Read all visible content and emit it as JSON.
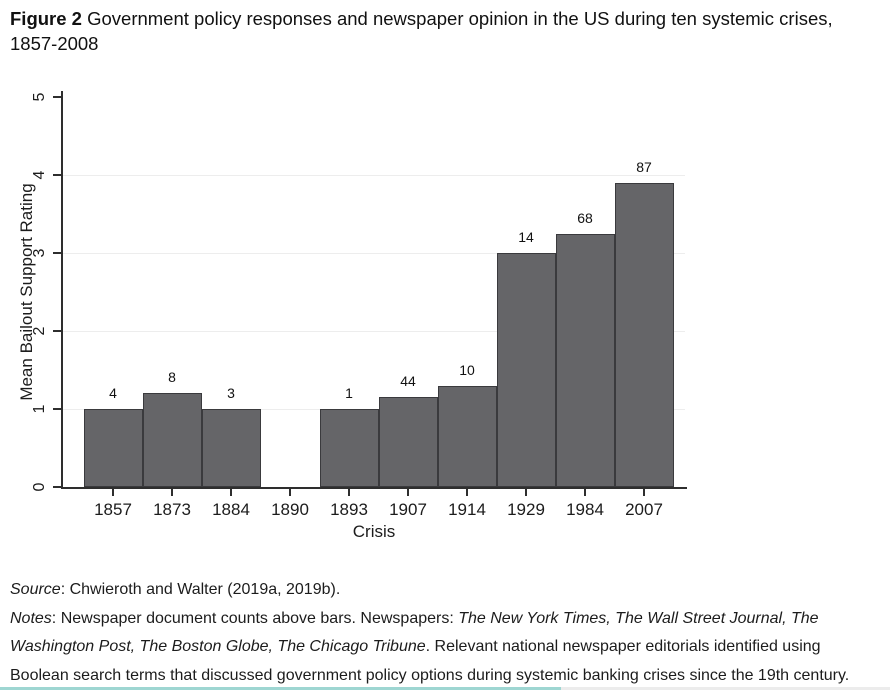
{
  "page": {
    "title_label": "Figure 2",
    "title_text": "Government policy responses and newspaper opinion in the US during ten systemic crises, 1857-2008"
  },
  "chart_data": {
    "type": "bar",
    "title": "",
    "xlabel": "Crisis",
    "ylabel": "Mean Bailout Support Rating",
    "ylim": [
      0,
      5
    ],
    "yticks": [
      0,
      1,
      2,
      3,
      4,
      5
    ],
    "gridline_values": [
      1,
      2,
      3,
      4
    ],
    "legend": "none",
    "categories": [
      "1857",
      "1873",
      "1884",
      "1890",
      "1893",
      "1907",
      "1914",
      "1929",
      "1984",
      "2007"
    ],
    "values": [
      1.0,
      1.2,
      1.0,
      null,
      1.0,
      1.15,
      1.3,
      3.0,
      3.25,
      3.9
    ],
    "bar_count_labels": [
      "4",
      "8",
      "3",
      null,
      "1",
      "44",
      "10",
      "14",
      "68",
      "87"
    ],
    "colors": {
      "bar_fill": "#656568",
      "bar_border": "#3a3a3d",
      "axis": "#2e2e2e",
      "grid": "#ededed",
      "text": "#1c1c1c"
    }
  },
  "footer": {
    "source_segments": [
      {
        "text": "Source",
        "italic": true
      },
      {
        "text": ": Chwieroth and Walter (2019a, 2019b).",
        "italic": false
      }
    ],
    "notes_segments": [
      {
        "text": "Notes",
        "italic": true
      },
      {
        "text": ": Newspaper document counts above bars. Newspapers: ",
        "italic": false
      },
      {
        "text": "The New York Times, The Wall Street Journal, The Washington Post, The Boston Globe, The Chicago Tribune",
        "italic": true
      },
      {
        "text": ". Relevant national newspaper editorials identified using Boolean search terms that discussed government policy options during systemic banking crises since the 19th century.",
        "italic": false
      }
    ]
  },
  "progress_bar": {
    "fill_color": "#5fc4bd",
    "track_color": "#ececec",
    "fill_percent": 63
  }
}
